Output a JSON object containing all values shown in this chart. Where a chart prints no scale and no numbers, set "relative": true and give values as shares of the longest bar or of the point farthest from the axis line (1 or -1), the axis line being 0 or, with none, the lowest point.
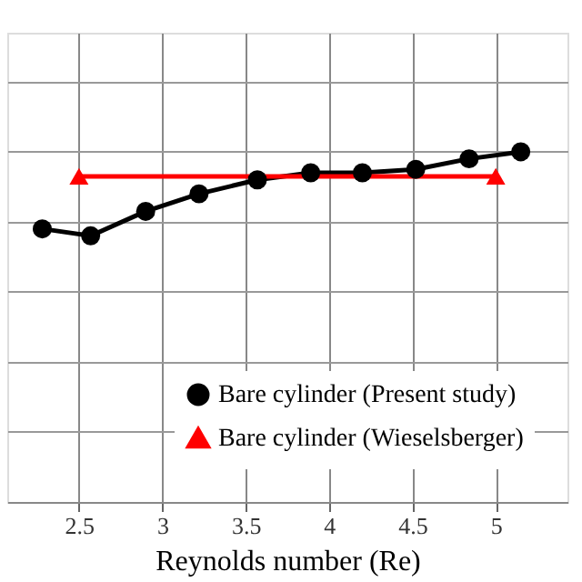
{
  "chart_data": {
    "type": "line",
    "xlabel": "Reynolds number (Re)",
    "relative": true,
    "xlim": [
      2.07,
      5.43
    ],
    "xticks": [
      2.5,
      3,
      3.5,
      4,
      4.5,
      5
    ],
    "grid": true,
    "legend": "bottom right",
    "line_style": "solid",
    "series": [
      {
        "name": "Bare cylinder (Present study)",
        "color": "#000000",
        "marker": "circle",
        "x": [
          2.28,
          2.57,
          2.9,
          3.22,
          3.57,
          3.89,
          4.2,
          4.52,
          4.84,
          5.15
        ],
        "values": [
          0.78,
          0.76,
          0.83,
          0.88,
          0.92,
          0.94,
          0.94,
          0.95,
          0.98,
          1.0
        ]
      },
      {
        "name": "Bare cylinder (Wieselsberger)",
        "color": "#ff0000",
        "marker": "triangle",
        "x": [
          2.5,
          5.0
        ],
        "values": [
          0.93,
          0.93
        ]
      }
    ]
  }
}
